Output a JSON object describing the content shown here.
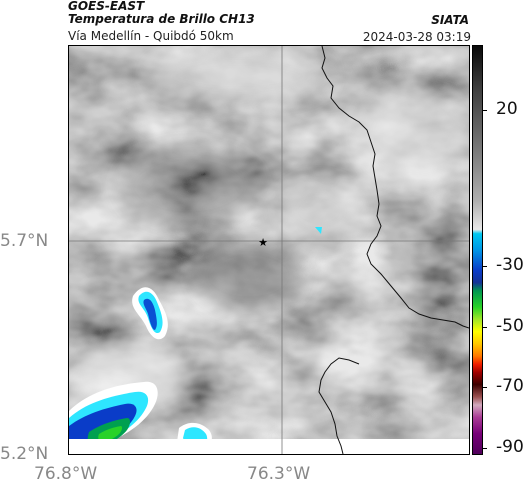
{
  "header": {
    "satellite": "GOES-EAST",
    "product": "Temperatura de Brillo CH13",
    "route": "Vía Medellín - Quibdó 50km",
    "organization": "SIATA",
    "timestamp": "2024-03-28 03:19"
  },
  "axes": {
    "y_ticks": [
      "5.7°N",
      "5.2°N"
    ],
    "x_ticks": [
      "76.8°W",
      "76.3°W"
    ]
  },
  "colorbar": {
    "labels": [
      "20",
      "-30",
      "-50",
      "-70",
      "-90"
    ]
  },
  "map": {
    "marker": "star-marker",
    "colors": {
      "cloud_gray": "#8c8c8c",
      "cold_cyan": "#2ee6ff",
      "deep_blue": "#0a3cc8",
      "green": "#00a050"
    }
  }
}
